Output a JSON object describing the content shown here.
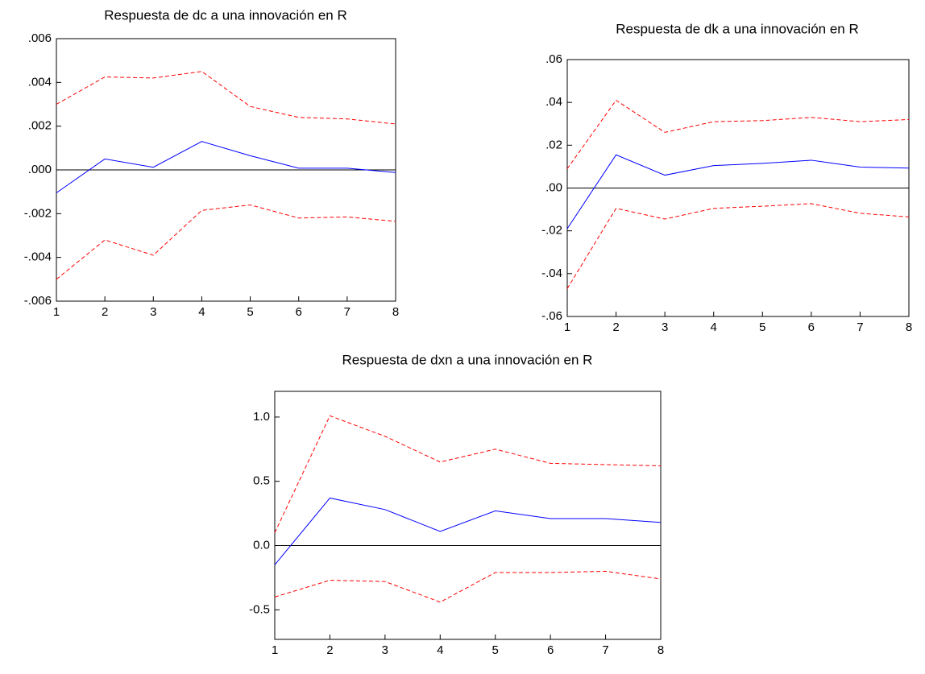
{
  "chart_data": [
    {
      "type": "line",
      "title": "Respuesta de dc a una innovación en R",
      "x": [
        1,
        2,
        3,
        4,
        5,
        6,
        7,
        8
      ],
      "xlim": [
        1,
        8
      ],
      "xticks": [
        1,
        2,
        3,
        4,
        5,
        6,
        7,
        8
      ],
      "ylim": [
        -0.006,
        0.006
      ],
      "yticks": [
        {
          "value": -0.006,
          "label": "-.006"
        },
        {
          "value": -0.004,
          "label": "-.004"
        },
        {
          "value": -0.002,
          "label": "-.002"
        },
        {
          "value": 0,
          "label": ".000"
        },
        {
          "value": 0.002,
          "label": ".002"
        },
        {
          "value": 0.004,
          "label": ".004"
        },
        {
          "value": 0.006,
          "label": ".006"
        }
      ],
      "zero_line": true,
      "series": [
        {
          "color": "#0000ff",
          "dash": false,
          "values": [
            -0.00105,
            0.0005,
            0.00012,
            0.0013,
            0.00065,
            8e-05,
            8e-05,
            -0.00012
          ]
        },
        {
          "color": "#ff0000",
          "dash": true,
          "values": [
            0.003,
            0.00425,
            0.0042,
            0.0045,
            0.0029,
            0.0024,
            0.00233,
            0.0021
          ]
        },
        {
          "color": "#ff0000",
          "dash": true,
          "values": [
            -0.005,
            -0.0032,
            -0.0039,
            -0.00185,
            -0.0016,
            -0.0022,
            -0.00215,
            -0.00235
          ]
        }
      ]
    },
    {
      "type": "line",
      "title": "Respuesta de dk a una innovación en R",
      "x": [
        1,
        2,
        3,
        4,
        5,
        6,
        7,
        8
      ],
      "xlim": [
        1,
        8
      ],
      "xticks": [
        1,
        2,
        3,
        4,
        5,
        6,
        7,
        8
      ],
      "ylim": [
        -0.06,
        0.06
      ],
      "yticks": [
        {
          "value": -0.06,
          "label": "-.06"
        },
        {
          "value": -0.04,
          "label": "-.04"
        },
        {
          "value": -0.02,
          "label": "-.02"
        },
        {
          "value": 0,
          "label": ".00"
        },
        {
          "value": 0.02,
          "label": ".02"
        },
        {
          "value": 0.04,
          "label": ".04"
        },
        {
          "value": 0.06,
          "label": ".06"
        }
      ],
      "zero_line": true,
      "series": [
        {
          "color": "#0000ff",
          "dash": false,
          "values": [
            -0.019,
            0.0155,
            0.006,
            0.0105,
            0.0115,
            0.013,
            0.0098,
            0.0093
          ]
        },
        {
          "color": "#ff0000",
          "dash": true,
          "values": [
            0.009,
            0.041,
            0.026,
            0.031,
            0.0315,
            0.033,
            0.031,
            0.032
          ]
        },
        {
          "color": "#ff0000",
          "dash": true,
          "values": [
            -0.047,
            -0.0095,
            -0.0145,
            -0.0095,
            -0.0085,
            -0.0073,
            -0.0118,
            -0.0135
          ]
        }
      ]
    },
    {
      "type": "line",
      "title": "Respuesta de dxn a una innovación en R",
      "x": [
        1,
        2,
        3,
        4,
        5,
        6,
        7,
        8
      ],
      "xlim": [
        1,
        8
      ],
      "xticks": [
        1,
        2,
        3,
        4,
        5,
        6,
        7,
        8
      ],
      "ylim": [
        -0.73,
        1.2
      ],
      "yticks": [
        -0.5,
        {
          "value": 0,
          "label": "0.0"
        },
        0.5,
        {
          "value": 1,
          "label": "1.0"
        }
      ],
      "zero_line": true,
      "series": [
        {
          "color": "#0000ff",
          "dash": false,
          "values": [
            -0.15,
            0.37,
            0.28,
            0.11,
            0.27,
            0.21,
            0.21,
            0.18
          ]
        },
        {
          "color": "#ff0000",
          "dash": true,
          "values": [
            0.1,
            1.01,
            0.85,
            0.65,
            0.75,
            0.64,
            0.63,
            0.62
          ]
        },
        {
          "color": "#ff0000",
          "dash": true,
          "values": [
            -0.4,
            -0.27,
            -0.28,
            -0.44,
            -0.21,
            -0.21,
            -0.2,
            -0.26
          ]
        }
      ]
    }
  ]
}
